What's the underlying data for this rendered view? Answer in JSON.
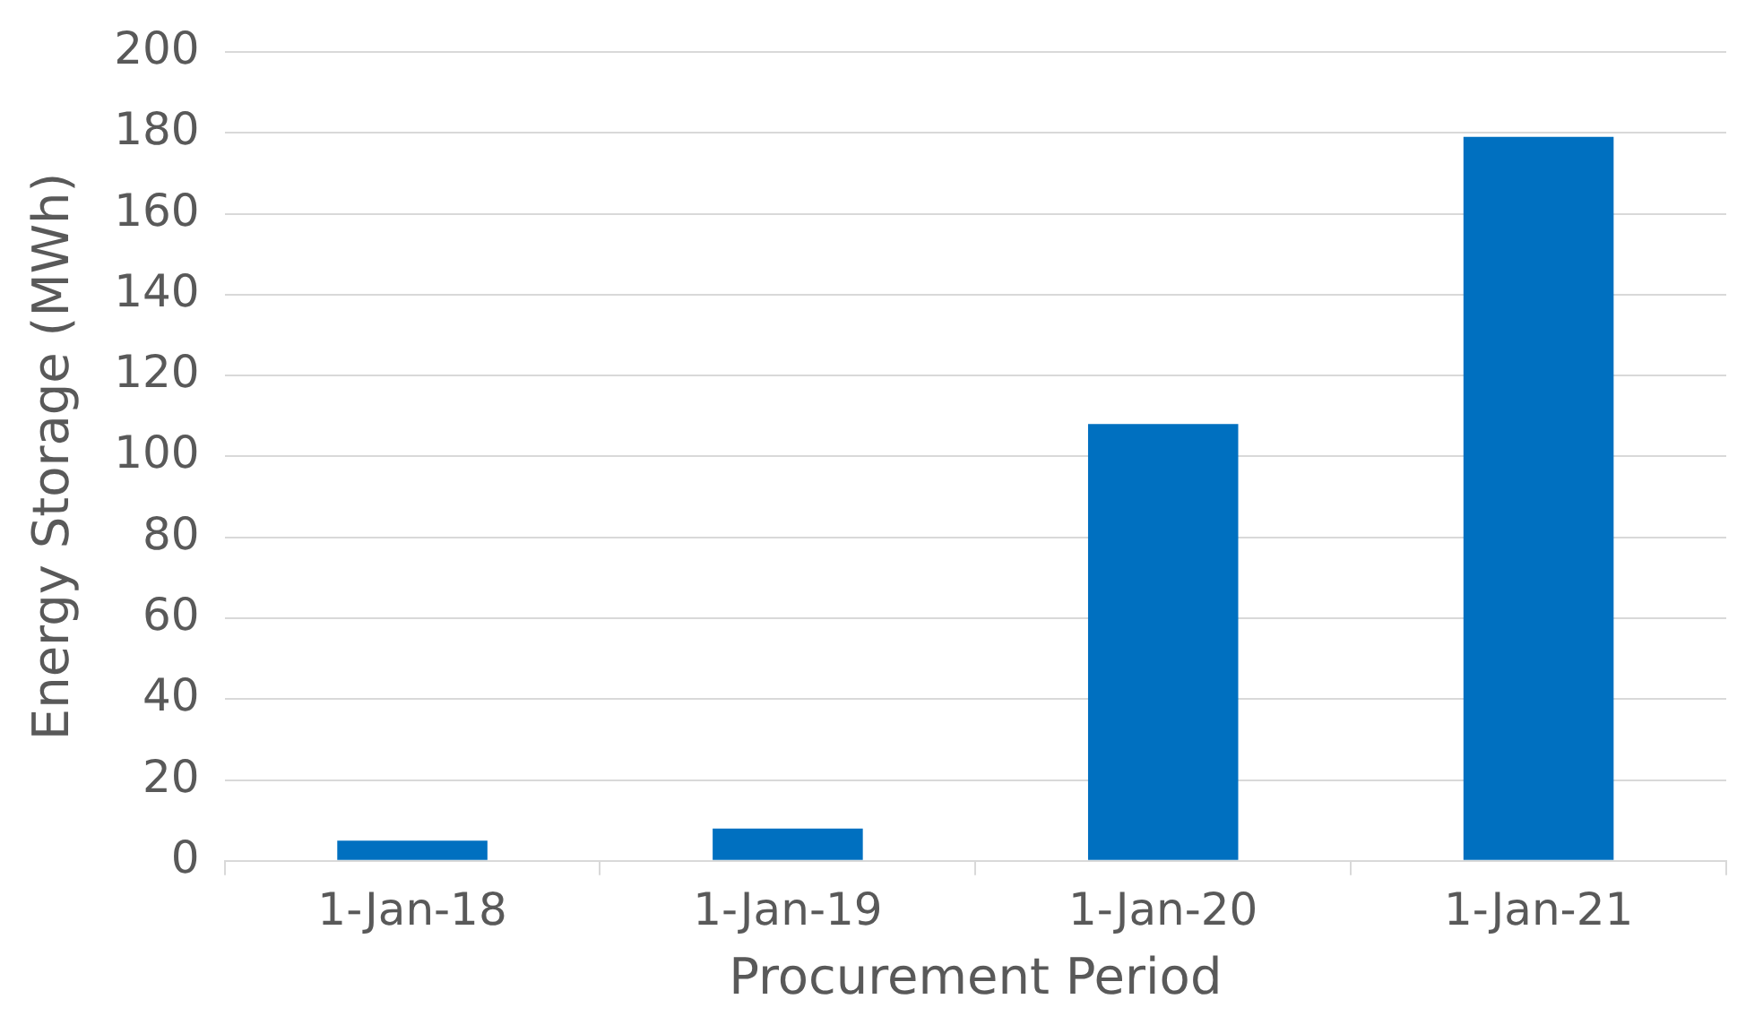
{
  "chart_data": {
    "type": "bar",
    "xlabel": "Procurement Period",
    "ylabel": "Energy Storage (MWh)",
    "categories": [
      "1-Jan-18",
      "1-Jan-19",
      "1-Jan-20",
      "1-Jan-21"
    ],
    "values": [
      5,
      8,
      108,
      179
    ],
    "color": "#0070c0",
    "ylim": [
      0,
      200
    ],
    "yticks": [
      0,
      20,
      40,
      60,
      80,
      100,
      120,
      140,
      160,
      180,
      200
    ],
    "grid": "y",
    "legend": false
  }
}
